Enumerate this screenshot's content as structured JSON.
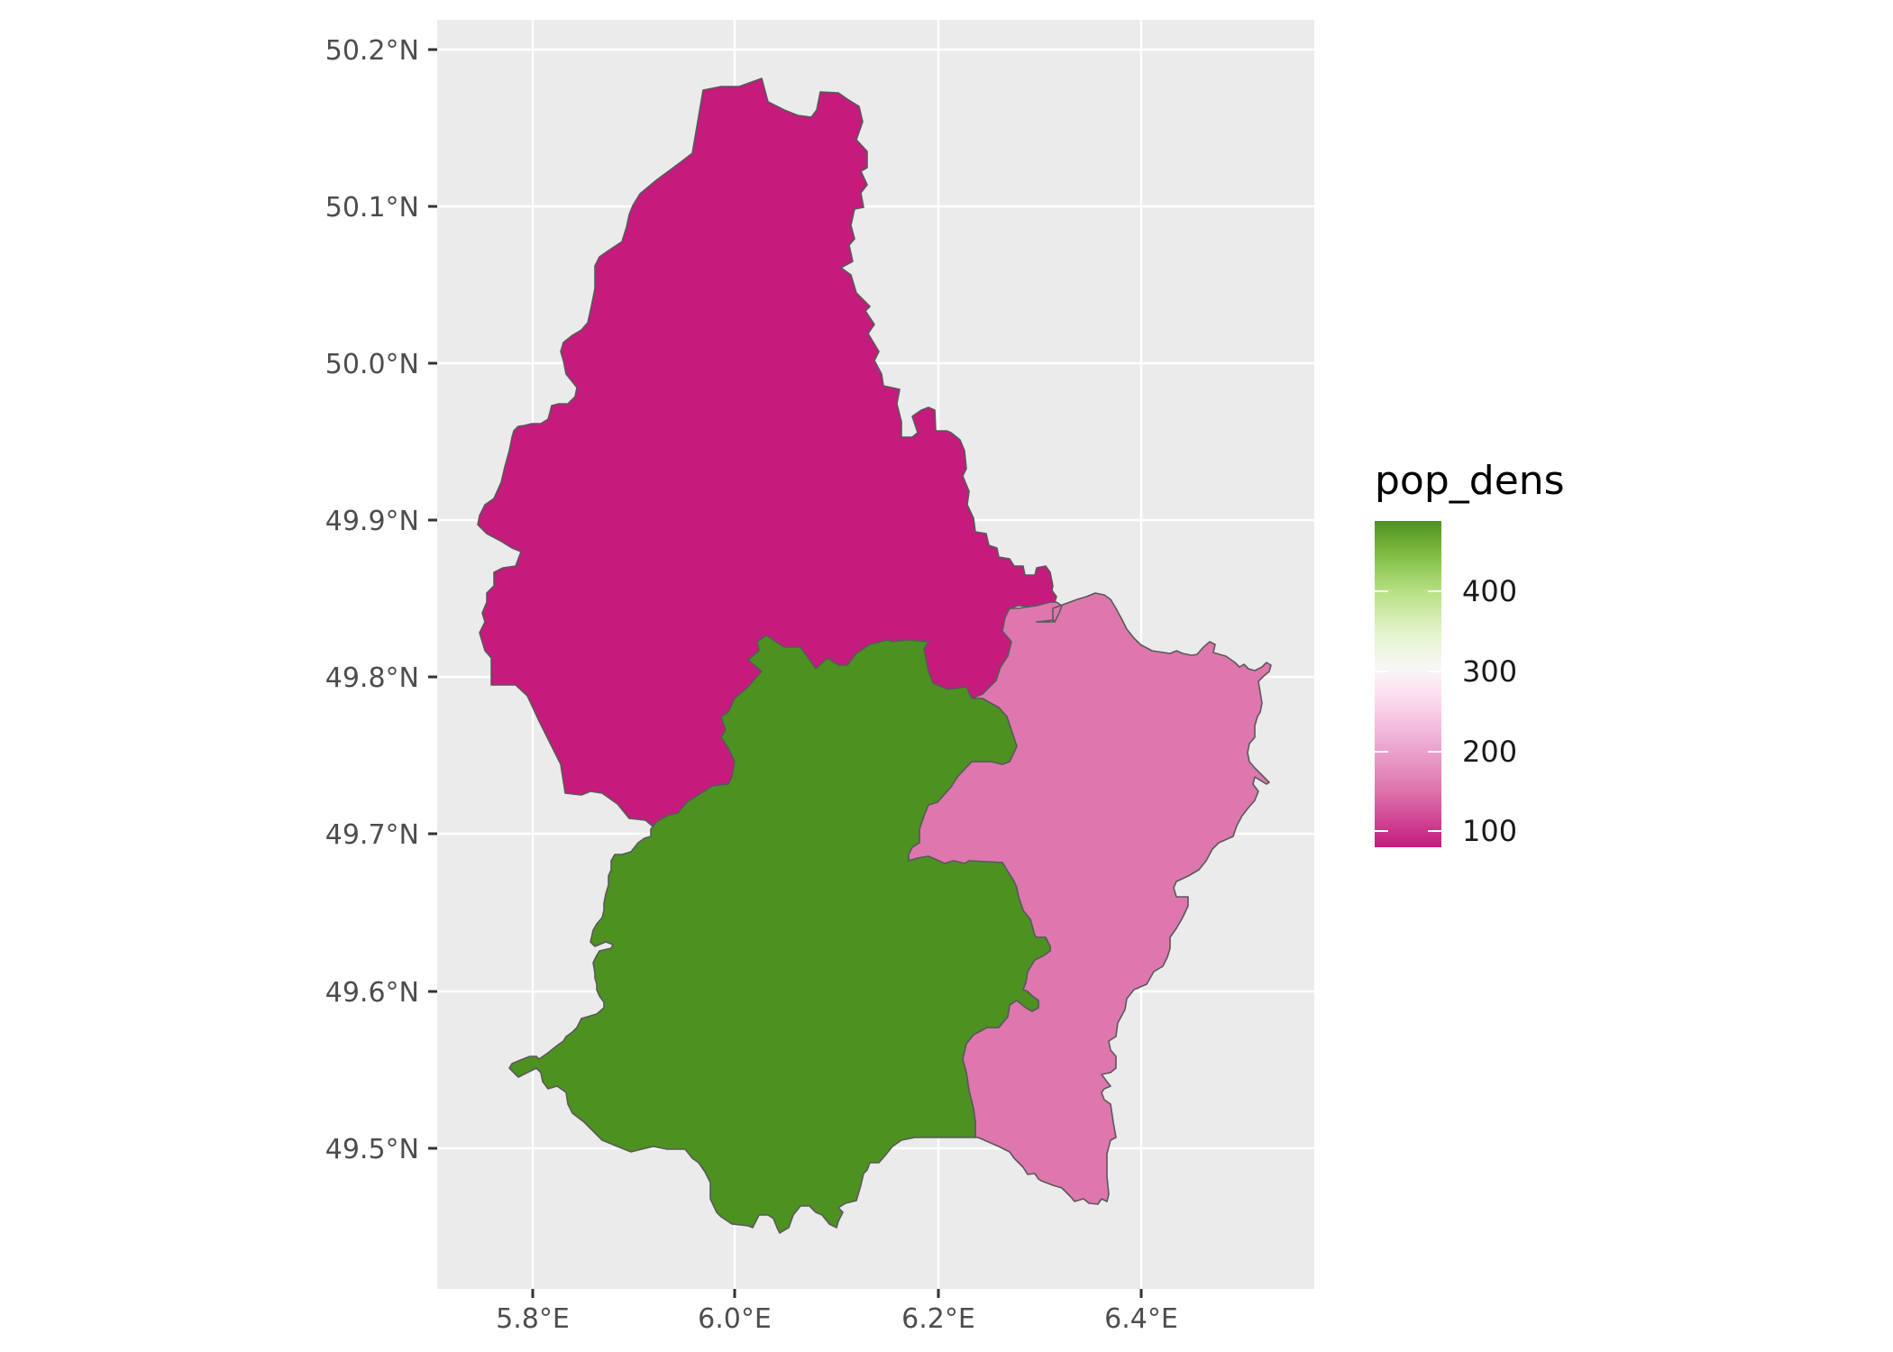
{
  "axes": {
    "x_ticks": [
      "5.8°E",
      "6.0°E",
      "6.2°E",
      "6.4°E"
    ],
    "y_ticks": [
      "49.5°N",
      "49.6°N",
      "49.7°N",
      "49.8°N",
      "49.9°N",
      "50.0°N",
      "50.1°N",
      "50.2°N"
    ]
  },
  "legend": {
    "title": "pop_dens",
    "labels": [
      "400",
      "300",
      "200",
      "100"
    ]
  },
  "colors": {
    "panel_background": "#ebebeb",
    "grid": "#ffffff",
    "border": "#595959",
    "north_region": "#c51b7d",
    "center_south_region": "#4d9221",
    "east_region": "#de77ae"
  },
  "regions": [
    {
      "id": "north",
      "fill": "north_region"
    },
    {
      "id": "center-south",
      "fill": "center_south_region"
    },
    {
      "id": "east",
      "fill": "east_region"
    }
  ]
}
